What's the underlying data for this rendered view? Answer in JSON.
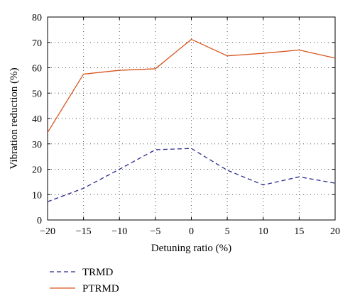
{
  "chart_data": {
    "type": "line",
    "title": "",
    "xlabel": "Detuning ratio (%)",
    "ylabel": "Vibration reduction (%)",
    "x": [
      -20,
      -15,
      -10,
      -5,
      0,
      5,
      10,
      15,
      20
    ],
    "xticks": [
      -20,
      -15,
      -10,
      -5,
      0,
      5,
      10,
      15,
      20
    ],
    "xtick_labels": [
      "−20",
      "−15",
      "−10",
      "−5",
      "0",
      "5",
      "10",
      "15",
      "20"
    ],
    "yticks": [
      0,
      10,
      20,
      30,
      40,
      50,
      60,
      70,
      80
    ],
    "xlim": [
      -20,
      20
    ],
    "ylim": [
      0,
      80
    ],
    "grid": true,
    "legend_position": "bottom-left, below plot",
    "series": [
      {
        "name": "TRMD",
        "values": [
          7.2,
          12.5,
          20.0,
          27.7,
          28.2,
          19.6,
          13.8,
          17.0,
          14.5
        ],
        "color": "#2b2b8f",
        "style": "dashed"
      },
      {
        "name": "PTRMD",
        "values": [
          34.5,
          57.5,
          59.0,
          59.6,
          71.2,
          64.7,
          65.7,
          67.0,
          63.8
        ],
        "color": "#d9541e",
        "style": "solid"
      }
    ]
  }
}
